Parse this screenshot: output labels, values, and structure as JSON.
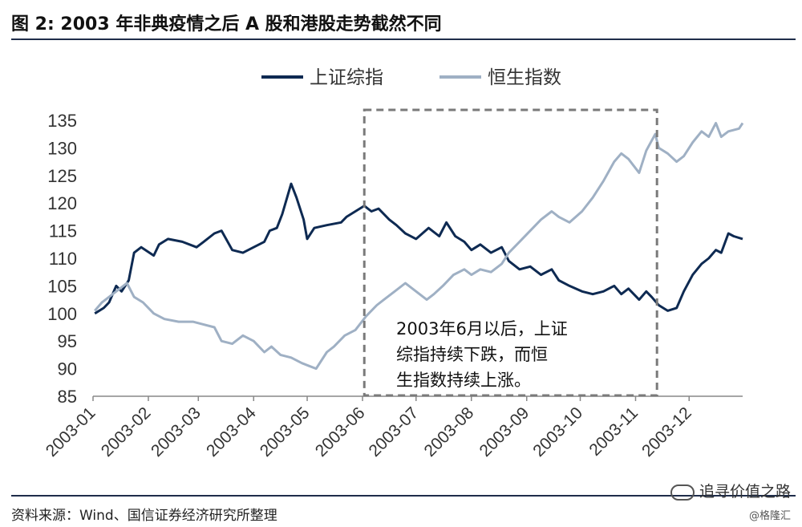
{
  "header": {
    "title": "图  2:  2003 年非典疫情之后 A 股和港股走势截然不同"
  },
  "footer": {
    "source": "资料来源：Wind、国信证券经济研究所整理",
    "brand": "追寻价值之路",
    "copyright": "@格隆汇"
  },
  "colors": {
    "shanghai": "#0e2a52",
    "hangseng": "#9fb0c4",
    "box": "#7a7a7a"
  },
  "chart_data": {
    "type": "line",
    "title": "",
    "xlabel": "",
    "ylabel": "",
    "ylim": [
      85,
      135
    ],
    "yticks": [
      85,
      90,
      95,
      100,
      105,
      110,
      115,
      120,
      125,
      130,
      135
    ],
    "xticks": [
      "2003-01",
      "2003-02",
      "2003-03",
      "2003-04",
      "2003-05",
      "2003-06",
      "2003-07",
      "2003-08",
      "2003-09",
      "2003-10",
      "2003-11",
      "2003-12"
    ],
    "legend_position": "top-center",
    "grid": false,
    "series": [
      {
        "name": "上证综指",
        "points": [
          [
            "2003-01-02",
            100
          ],
          [
            "2003-01-07",
            101
          ],
          [
            "2003-01-10",
            102
          ],
          [
            "2003-01-14",
            105
          ],
          [
            "2003-01-17",
            104
          ],
          [
            "2003-01-21",
            106
          ],
          [
            "2003-01-24",
            111
          ],
          [
            "2003-01-28",
            112
          ],
          [
            "2003-02-04",
            110.5
          ],
          [
            "2003-02-07",
            112.5
          ],
          [
            "2003-02-12",
            113.5
          ],
          [
            "2003-02-20",
            113
          ],
          [
            "2003-02-28",
            112
          ],
          [
            "2003-03-04",
            113
          ],
          [
            "2003-03-10",
            114.5
          ],
          [
            "2003-03-14",
            115
          ],
          [
            "2003-03-20",
            111.5
          ],
          [
            "2003-03-26",
            111
          ],
          [
            "2003-04-01",
            112
          ],
          [
            "2003-04-07",
            113
          ],
          [
            "2003-04-10",
            115
          ],
          [
            "2003-04-14",
            115.5
          ],
          [
            "2003-04-17",
            118
          ],
          [
            "2003-04-22",
            123.5
          ],
          [
            "2003-04-25",
            121
          ],
          [
            "2003-04-29",
            117
          ],
          [
            "2003-05-01",
            113.5
          ],
          [
            "2003-05-05",
            115.5
          ],
          [
            "2003-05-12",
            116
          ],
          [
            "2003-05-20",
            116.5
          ],
          [
            "2003-05-23",
            117.5
          ],
          [
            "2003-05-28",
            118.5
          ],
          [
            "2003-06-02",
            119.5
          ],
          [
            "2003-06-06",
            118.5
          ],
          [
            "2003-06-10",
            119
          ],
          [
            "2003-06-16",
            117
          ],
          [
            "2003-06-20",
            116
          ],
          [
            "2003-06-25",
            114.5
          ],
          [
            "2003-07-01",
            113.5
          ],
          [
            "2003-07-08",
            115.5
          ],
          [
            "2003-07-14",
            114
          ],
          [
            "2003-07-18",
            116.5
          ],
          [
            "2003-07-23",
            114
          ],
          [
            "2003-07-28",
            113
          ],
          [
            "2003-08-01",
            111.5
          ],
          [
            "2003-08-06",
            112.5
          ],
          [
            "2003-08-12",
            111
          ],
          [
            "2003-08-18",
            112
          ],
          [
            "2003-08-22",
            109.5
          ],
          [
            "2003-08-28",
            108
          ],
          [
            "2003-09-03",
            108.5
          ],
          [
            "2003-09-09",
            107
          ],
          [
            "2003-09-15",
            108
          ],
          [
            "2003-09-19",
            106
          ],
          [
            "2003-09-25",
            105
          ],
          [
            "2003-10-02",
            104
          ],
          [
            "2003-10-08",
            103.5
          ],
          [
            "2003-10-14",
            104
          ],
          [
            "2003-10-20",
            105
          ],
          [
            "2003-10-24",
            103.5
          ],
          [
            "2003-10-28",
            104.5
          ],
          [
            "2003-11-03",
            102.5
          ],
          [
            "2003-11-07",
            104
          ],
          [
            "2003-11-10",
            103
          ],
          [
            "2003-11-14",
            101.5
          ],
          [
            "2003-11-19",
            100.5
          ],
          [
            "2003-11-24",
            101
          ],
          [
            "2003-11-28",
            104
          ],
          [
            "2003-12-03",
            107
          ],
          [
            "2003-12-08",
            109
          ],
          [
            "2003-12-12",
            110
          ],
          [
            "2003-12-16",
            111.5
          ],
          [
            "2003-12-19",
            111
          ],
          [
            "2003-12-23",
            114.5
          ],
          [
            "2003-12-26",
            114
          ],
          [
            "2003-12-31",
            113.5
          ]
        ]
      },
      {
        "name": "恒生指数",
        "points": [
          [
            "2003-01-02",
            100.5
          ],
          [
            "2003-01-06",
            102
          ],
          [
            "2003-01-10",
            103
          ],
          [
            "2003-01-14",
            104
          ],
          [
            "2003-01-20",
            105.5
          ],
          [
            "2003-01-24",
            103
          ],
          [
            "2003-01-29",
            102
          ],
          [
            "2003-02-04",
            100
          ],
          [
            "2003-02-10",
            99
          ],
          [
            "2003-02-18",
            98.5
          ],
          [
            "2003-02-26",
            98.5
          ],
          [
            "2003-03-04",
            98
          ],
          [
            "2003-03-10",
            97.5
          ],
          [
            "2003-03-14",
            95
          ],
          [
            "2003-03-20",
            94.5
          ],
          [
            "2003-03-26",
            96
          ],
          [
            "2003-04-01",
            95
          ],
          [
            "2003-04-07",
            93
          ],
          [
            "2003-04-11",
            94
          ],
          [
            "2003-04-16",
            92.5
          ],
          [
            "2003-04-22",
            92
          ],
          [
            "2003-04-28",
            91
          ],
          [
            "2003-05-02",
            90.5
          ],
          [
            "2003-05-06",
            90
          ],
          [
            "2003-05-12",
            93
          ],
          [
            "2003-05-16",
            94
          ],
          [
            "2003-05-22",
            96
          ],
          [
            "2003-05-28",
            97
          ],
          [
            "2003-06-03",
            99.5
          ],
          [
            "2003-06-09",
            101.5
          ],
          [
            "2003-06-13",
            102.5
          ],
          [
            "2003-06-19",
            104
          ],
          [
            "2003-06-25",
            105.5
          ],
          [
            "2003-07-01",
            104
          ],
          [
            "2003-07-07",
            102.5
          ],
          [
            "2003-07-11",
            103.5
          ],
          [
            "2003-07-16",
            105
          ],
          [
            "2003-07-22",
            107
          ],
          [
            "2003-07-28",
            108
          ],
          [
            "2003-08-01",
            107
          ],
          [
            "2003-08-06",
            108
          ],
          [
            "2003-08-12",
            107.5
          ],
          [
            "2003-08-18",
            109
          ],
          [
            "2003-08-22",
            111
          ],
          [
            "2003-08-28",
            113
          ],
          [
            "2003-09-03",
            115
          ],
          [
            "2003-09-09",
            117
          ],
          [
            "2003-09-15",
            118.5
          ],
          [
            "2003-09-19",
            117.5
          ],
          [
            "2003-09-25",
            116.5
          ],
          [
            "2003-10-02",
            118.5
          ],
          [
            "2003-10-08",
            121
          ],
          [
            "2003-10-14",
            124
          ],
          [
            "2003-10-20",
            127.5
          ],
          [
            "2003-10-24",
            129
          ],
          [
            "2003-10-28",
            128
          ],
          [
            "2003-11-03",
            125.5
          ],
          [
            "2003-11-07",
            129.5
          ],
          [
            "2003-11-12",
            132.5
          ],
          [
            "2003-11-14",
            130
          ],
          [
            "2003-11-19",
            129
          ],
          [
            "2003-11-24",
            127.5
          ],
          [
            "2003-11-28",
            128.5
          ],
          [
            "2003-12-03",
            131
          ],
          [
            "2003-12-08",
            133
          ],
          [
            "2003-12-12",
            132
          ],
          [
            "2003-12-16",
            134.5
          ],
          [
            "2003-12-19",
            132
          ],
          [
            "2003-12-23",
            133
          ],
          [
            "2003-12-29",
            133.5
          ],
          [
            "2003-12-31",
            134.5
          ]
        ]
      }
    ],
    "annotation": {
      "text": "2003年6月以后，上证\n综指持续下跌，而恒\n生指数持续上涨。",
      "box_x_range": [
        "2003-06-02",
        "2003-11-13"
      ]
    }
  }
}
